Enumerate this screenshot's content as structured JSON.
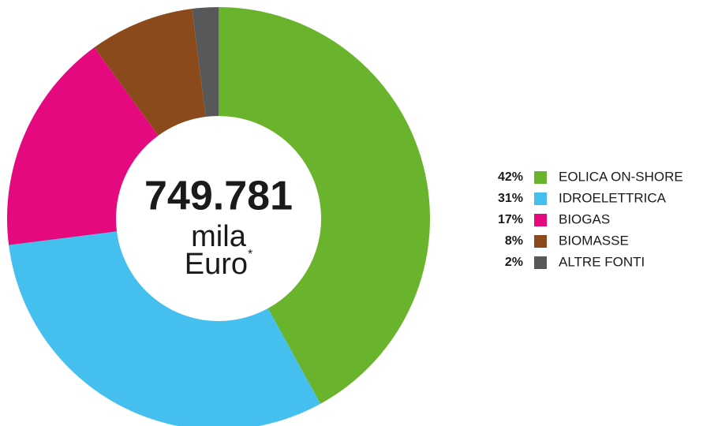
{
  "chart_data": {
    "type": "donut",
    "total": "749.781",
    "unit": "mila",
    "currency": "Euro",
    "footnote_mark": "*",
    "categories": [
      "EOLICA ON-SHORE",
      "IDROELETTRICA",
      "BIOGAS",
      "BIOMASSE",
      "ALTRE FONTI"
    ],
    "values": [
      42,
      31,
      17,
      8,
      2
    ],
    "value_labels": [
      "42%",
      "31%",
      "17%",
      "8%",
      "2%"
    ],
    "colors": [
      "#6ab42d",
      "#45bfee",
      "#e5097f",
      "#8b4a1b",
      "#58585a"
    ],
    "legend": "right"
  }
}
